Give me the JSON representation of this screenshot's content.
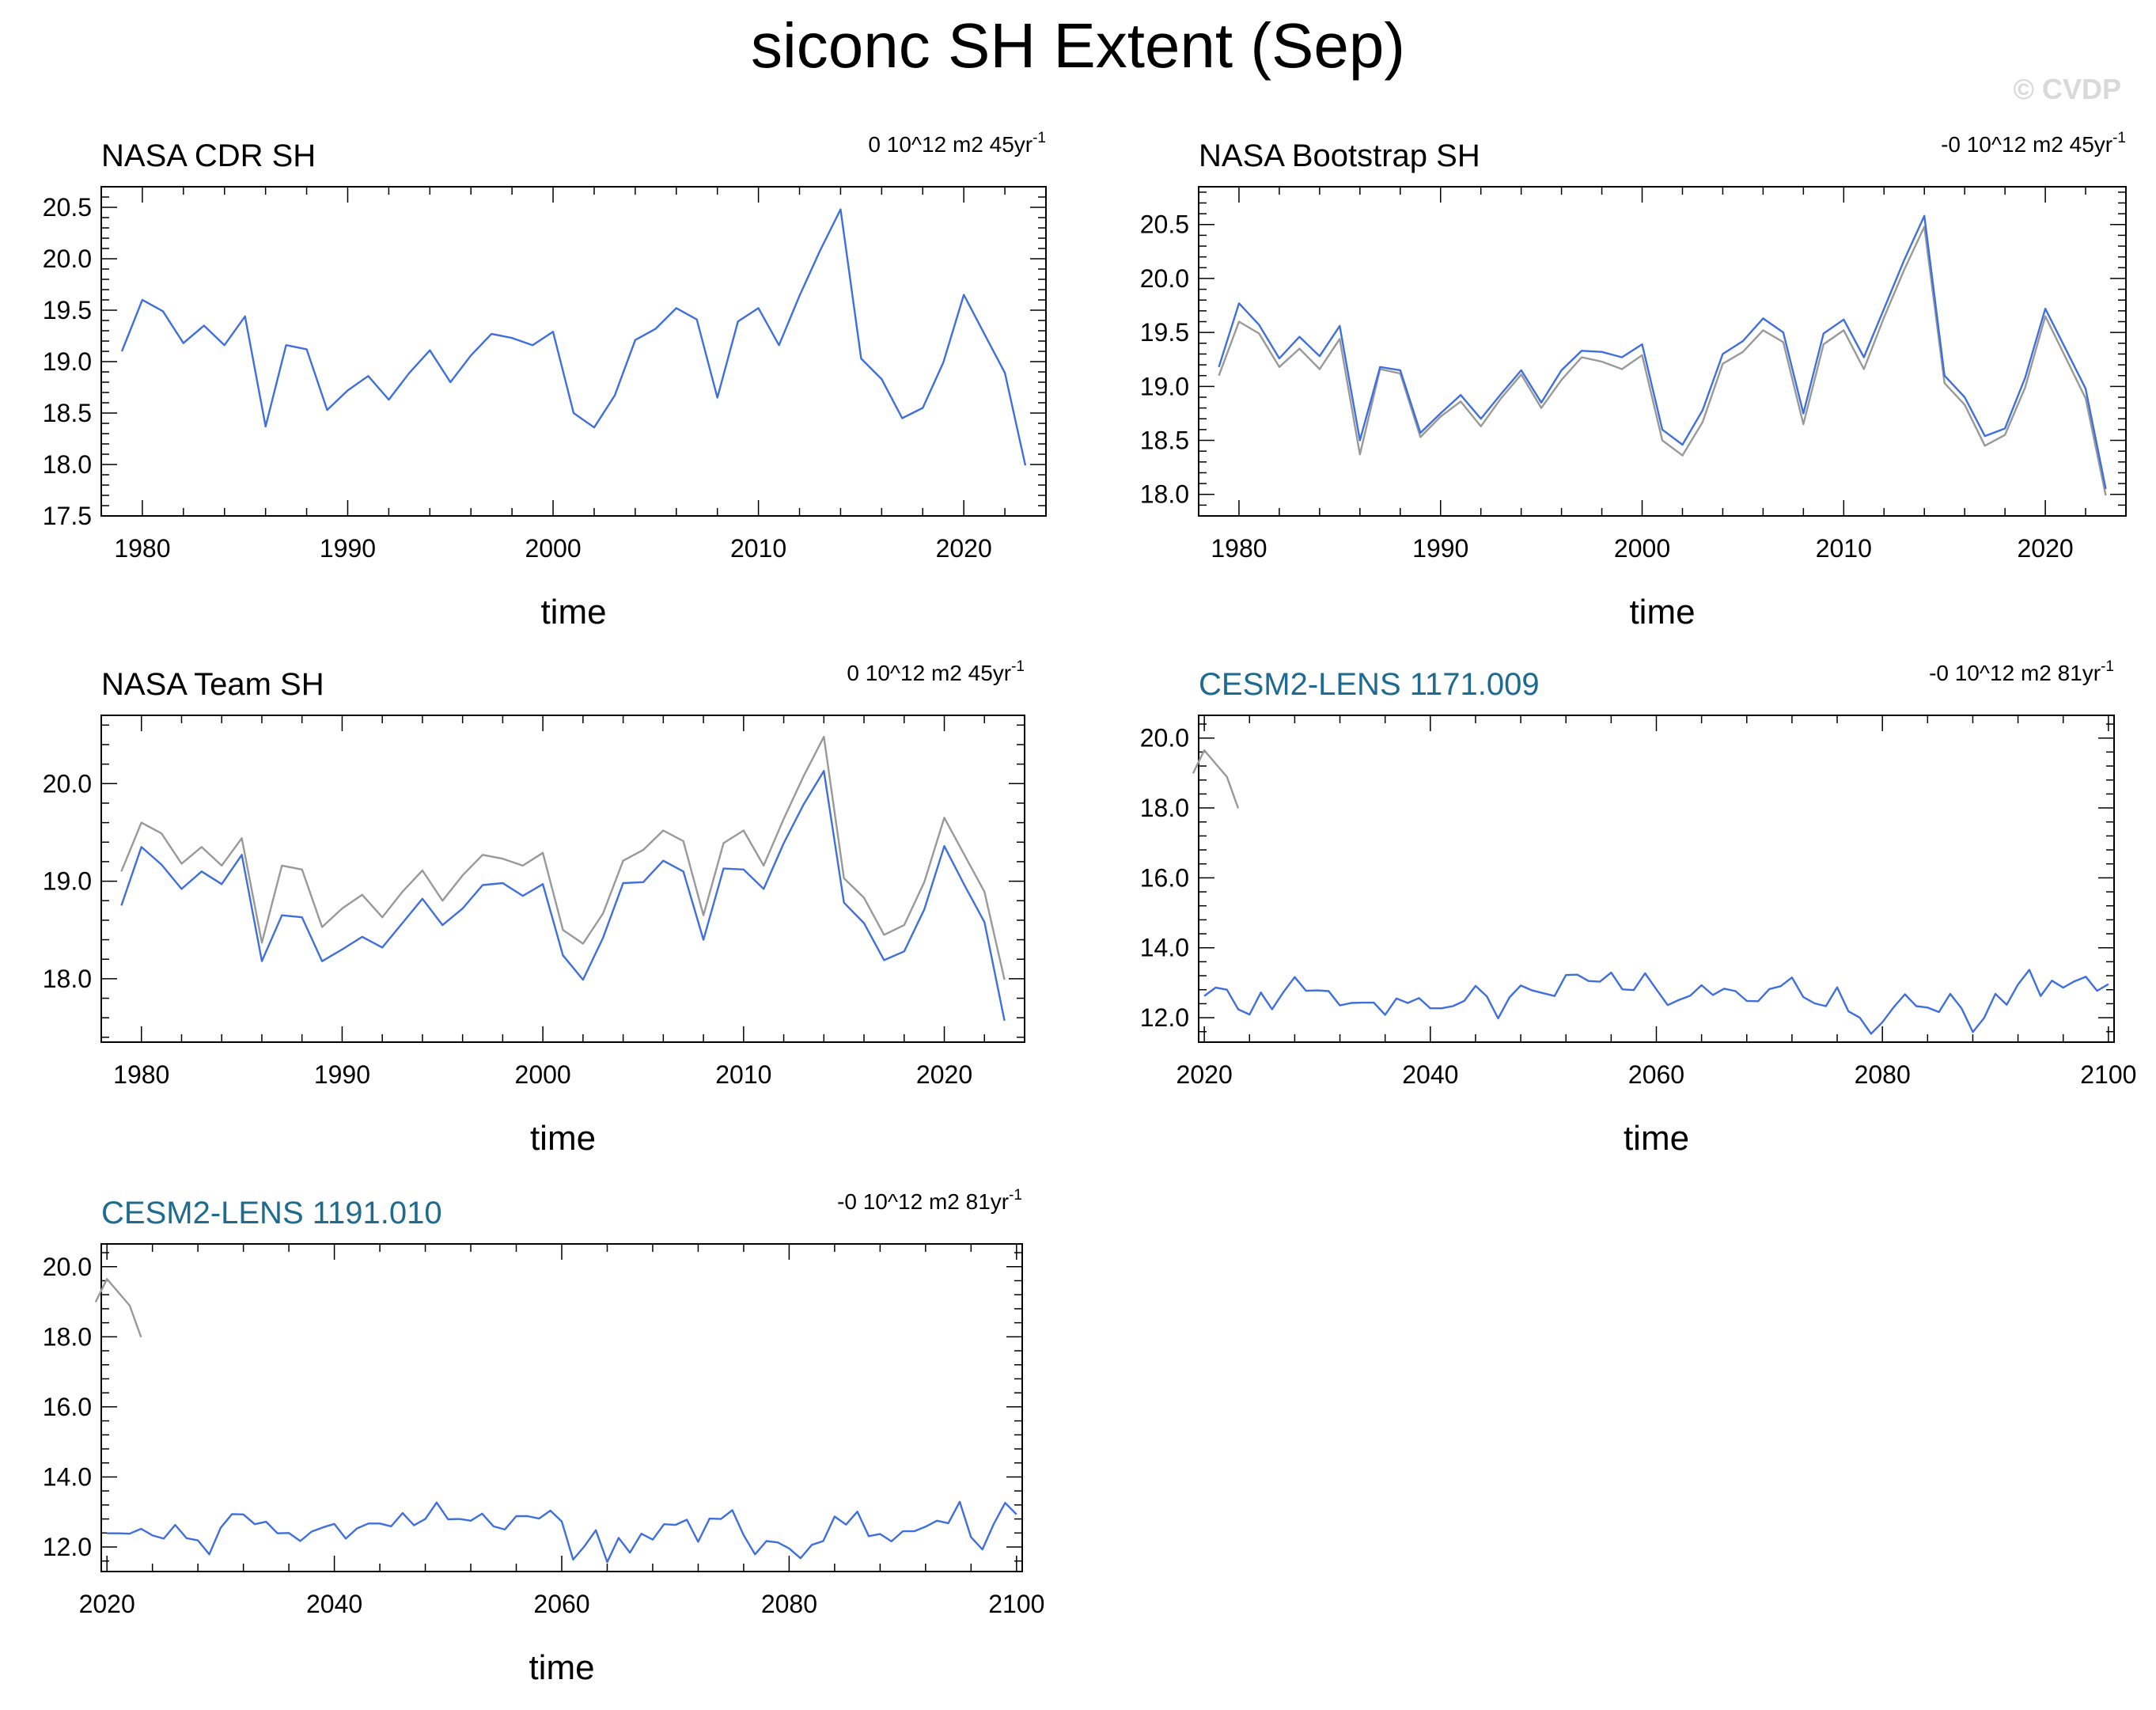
{
  "page": {
    "title": "siconc SH Extent (Sep)",
    "watermark": "© CVDP"
  },
  "colors": {
    "observed": "#999999",
    "series": "#3f6fdf",
    "model_title": "#1f6b8f",
    "obs_title": "#000000"
  },
  "chart_data": [
    {
      "type": "line",
      "title": "NASA CDR SH",
      "title_style": "obs",
      "trend_label": "0 10^12 m2 45yr",
      "trend_sup": "-1",
      "xlabel": "time",
      "xlim": [
        1978,
        2024
      ],
      "ylim": [
        17.5,
        20.7
      ],
      "xticks": [
        1980,
        1990,
        2000,
        2010,
        2020
      ],
      "yticks": [
        "17.5",
        "18.0",
        "18.5",
        "19.0",
        "19.5",
        "20.0",
        "20.5"
      ],
      "series": [
        {
          "role": "series",
          "x_start": 1979,
          "values": [
            19.1,
            19.6,
            19.49,
            19.18,
            19.35,
            19.16,
            19.44,
            18.37,
            19.16,
            19.12,
            18.53,
            18.72,
            18.86,
            18.63,
            18.89,
            19.11,
            18.8,
            19.06,
            19.27,
            19.23,
            19.16,
            19.29,
            18.5,
            18.36,
            18.67,
            19.21,
            19.32,
            19.52,
            19.41,
            18.65,
            19.39,
            19.52,
            19.16,
            19.64,
            20.08,
            20.48,
            19.03,
            18.83,
            18.45,
            18.55,
            18.99,
            19.65,
            19.27,
            18.89,
            17.99
          ]
        }
      ]
    },
    {
      "type": "line",
      "title": "NASA Bootstrap SH",
      "title_style": "obs",
      "trend_label": "-0 10^12 m2 45yr",
      "trend_sup": "-1",
      "xlabel": "time",
      "xlim": [
        1978,
        2024
      ],
      "ylim": [
        17.8,
        20.85
      ],
      "xticks": [
        1980,
        1990,
        2000,
        2010,
        2020
      ],
      "yticks": [
        "18.0",
        "18.5",
        "19.0",
        "19.5",
        "20.0",
        "20.5"
      ],
      "series": [
        {
          "role": "observed",
          "x_start": 1979,
          "values": [
            19.1,
            19.6,
            19.49,
            19.18,
            19.35,
            19.16,
            19.44,
            18.37,
            19.16,
            19.12,
            18.53,
            18.72,
            18.86,
            18.63,
            18.89,
            19.11,
            18.8,
            19.06,
            19.27,
            19.23,
            19.16,
            19.29,
            18.5,
            18.36,
            18.67,
            19.21,
            19.32,
            19.52,
            19.41,
            18.65,
            19.39,
            19.52,
            19.16,
            19.64,
            20.08,
            20.48,
            19.03,
            18.83,
            18.45,
            18.55,
            18.99,
            19.65,
            19.27,
            18.89,
            17.99
          ]
        },
        {
          "role": "series",
          "x_start": 1979,
          "values": [
            19.18,
            19.77,
            19.57,
            19.26,
            19.46,
            19.28,
            19.56,
            18.5,
            19.18,
            19.15,
            18.57,
            18.75,
            18.92,
            18.7,
            18.93,
            19.15,
            18.85,
            19.15,
            19.33,
            19.32,
            19.27,
            19.39,
            18.6,
            18.46,
            18.78,
            19.3,
            19.42,
            19.63,
            19.5,
            18.75,
            19.49,
            19.62,
            19.27,
            19.72,
            20.17,
            20.58,
            19.1,
            18.9,
            18.54,
            18.61,
            19.08,
            19.72,
            19.35,
            18.98,
            18.05
          ]
        }
      ]
    },
    {
      "type": "line",
      "title": "NASA Team SH",
      "title_style": "obs",
      "trend_label": "0 10^12 m2 45yr",
      "trend_sup": "-1",
      "xlabel": "time",
      "xlim": [
        1978,
        2024
      ],
      "ylim": [
        17.35,
        20.7
      ],
      "xticks": [
        1980,
        1990,
        2000,
        2010,
        2020
      ],
      "yticks": [
        "18.0",
        "19.0",
        "20.0"
      ],
      "series": [
        {
          "role": "observed",
          "x_start": 1979,
          "values": [
            19.1,
            19.6,
            19.49,
            19.18,
            19.35,
            19.16,
            19.44,
            18.37,
            19.16,
            19.12,
            18.53,
            18.72,
            18.86,
            18.63,
            18.89,
            19.11,
            18.8,
            19.06,
            19.27,
            19.23,
            19.16,
            19.29,
            18.5,
            18.36,
            18.67,
            19.21,
            19.32,
            19.52,
            19.41,
            18.65,
            19.39,
            19.52,
            19.16,
            19.64,
            20.08,
            20.48,
            19.03,
            18.83,
            18.45,
            18.55,
            18.99,
            19.65,
            19.27,
            18.89,
            17.99
          ]
        },
        {
          "role": "series",
          "x_start": 1979,
          "values": [
            18.75,
            19.35,
            19.17,
            18.92,
            19.1,
            18.97,
            19.27,
            18.18,
            18.65,
            18.63,
            18.18,
            18.3,
            18.43,
            18.32,
            18.57,
            18.82,
            18.55,
            18.72,
            18.96,
            18.98,
            18.85,
            18.97,
            18.24,
            17.99,
            18.42,
            18.98,
            18.99,
            19.21,
            19.1,
            18.4,
            19.13,
            19.12,
            18.92,
            19.39,
            19.79,
            20.13,
            18.78,
            18.57,
            18.19,
            18.28,
            18.71,
            19.36,
            18.96,
            18.58,
            17.57
          ]
        }
      ]
    },
    {
      "type": "line",
      "title": "CESM2-LENS 1171.009",
      "title_style": "model",
      "trend_label": "-0 10^12 m2 81yr",
      "trend_sup": "-1",
      "xlabel": "time",
      "xlim": [
        2019.5,
        2100.5
      ],
      "ylim": [
        11.3,
        20.65
      ],
      "xticks": [
        2020,
        2040,
        2060,
        2080,
        2100
      ],
      "yticks": [
        "12.0",
        "14.0",
        "16.0",
        "18.0",
        "20.0"
      ],
      "series": [
        {
          "role": "observed",
          "x_start": 2019,
          "values": [
            18.99,
            19.65,
            19.27,
            18.89,
            17.99
          ]
        },
        {
          "role": "series",
          "x_start": 2020,
          "values": [
            12.62,
            12.86,
            12.8,
            12.24,
            12.09,
            12.72,
            12.24,
            12.73,
            13.16,
            12.77,
            12.78,
            12.76,
            12.35,
            12.42,
            12.43,
            12.43,
            12.08,
            12.55,
            12.42,
            12.56,
            12.27,
            12.27,
            12.33,
            12.48,
            12.91,
            12.61,
            11.98,
            12.58,
            12.92,
            12.78,
            12.7,
            12.62,
            13.22,
            13.23,
            13.05,
            13.03,
            13.29,
            12.81,
            12.79,
            13.27,
            12.81,
            12.36,
            12.51,
            12.63,
            12.93,
            12.65,
            12.83,
            12.76,
            12.48,
            12.47,
            12.82,
            12.9,
            13.15,
            12.59,
            12.41,
            12.33,
            12.87,
            12.18,
            12.0,
            11.54,
            11.87,
            12.3,
            12.67,
            12.33,
            12.29,
            12.16,
            12.68,
            12.27,
            11.59,
            11.99,
            12.68,
            12.37,
            12.95,
            13.37,
            12.62,
            13.06,
            12.86,
            13.04,
            13.17,
            12.77,
            12.96
          ]
        }
      ]
    },
    {
      "type": "line",
      "title": "CESM2-LENS 1191.010",
      "title_style": "model",
      "trend_label": "-0 10^12 m2 81yr",
      "trend_sup": "-1",
      "xlabel": "time",
      "xlim": [
        2019.5,
        2100.5
      ],
      "ylim": [
        11.3,
        20.65
      ],
      "xticks": [
        2020,
        2040,
        2060,
        2080,
        2100
      ],
      "yticks": [
        "12.0",
        "14.0",
        "16.0",
        "18.0",
        "20.0"
      ],
      "series": [
        {
          "role": "observed",
          "x_start": 2019,
          "values": [
            18.99,
            19.65,
            19.27,
            18.89,
            17.99
          ]
        },
        {
          "role": "series",
          "x_start": 2020,
          "values": [
            12.39,
            12.39,
            12.38,
            12.52,
            12.33,
            12.24,
            12.63,
            12.25,
            12.19,
            11.79,
            12.55,
            12.94,
            12.93,
            12.65,
            12.72,
            12.39,
            12.4,
            12.17,
            12.44,
            12.56,
            12.66,
            12.24,
            12.53,
            12.67,
            12.67,
            12.59,
            12.97,
            12.62,
            12.8,
            13.27,
            12.79,
            12.8,
            12.75,
            12.95,
            12.59,
            12.5,
            12.88,
            12.88,
            12.81,
            13.04,
            12.73,
            11.64,
            12.02,
            12.48,
            11.57,
            12.26,
            11.84,
            12.38,
            12.21,
            12.65,
            12.63,
            12.78,
            12.15,
            12.81,
            12.8,
            13.05,
            12.34,
            11.79,
            12.17,
            12.13,
            11.96,
            11.68,
            12.06,
            12.17,
            12.87,
            12.64,
            13.01,
            12.31,
            12.37,
            12.16,
            12.45,
            12.45,
            12.58,
            12.75,
            12.68,
            13.29,
            12.28,
            11.93,
            12.66,
            13.26,
            12.93
          ]
        }
      ]
    }
  ]
}
